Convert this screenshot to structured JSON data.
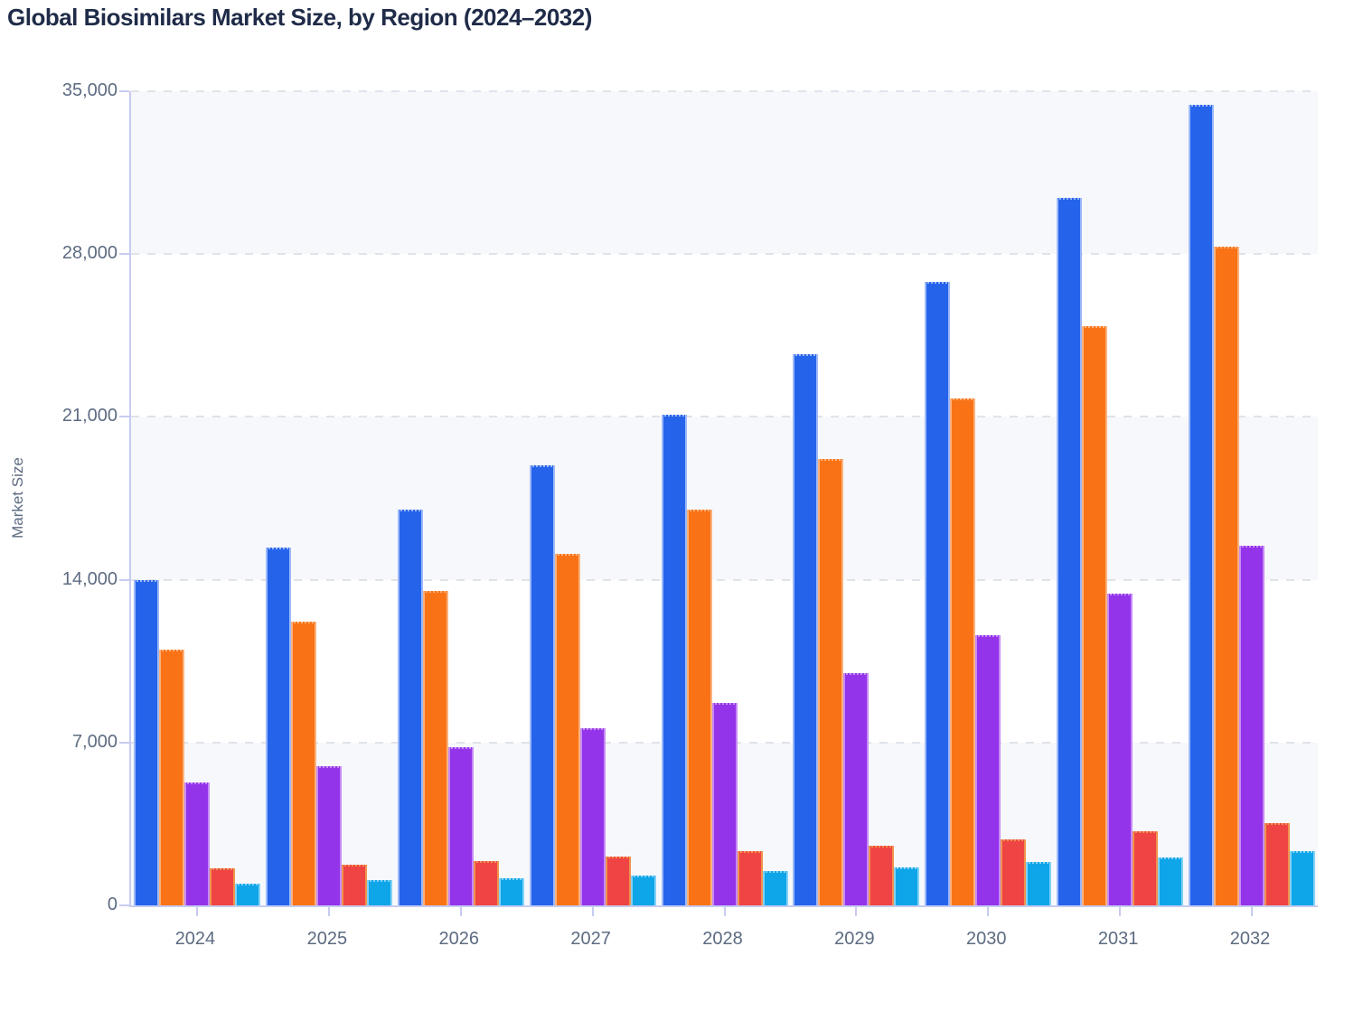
{
  "page": {
    "title": "Global Biosimilars Market Size, by Region (2024–2032)"
  },
  "chart_data": {
    "type": "bar",
    "title": "Global Biosimilars Market Size, by Region (2024–2032)",
    "xlabel": "",
    "ylabel": "Market Size",
    "categories": [
      "2024",
      "2025",
      "2026",
      "2027",
      "2028",
      "2029",
      "2030",
      "2031",
      "2032"
    ],
    "series": [
      {
        "name": "blue",
        "color": "#2563eb",
        "border_tint": "#9db9f8",
        "values": [
          14000,
          15400,
          17000,
          18900,
          21100,
          23700,
          26800,
          30400,
          34400
        ]
      },
      {
        "name": "orange",
        "color": "#f97316",
        "border_tint": "#fbb27d",
        "values": [
          11000,
          12200,
          13500,
          15100,
          17000,
          19200,
          21800,
          24900,
          28300
        ]
      },
      {
        "name": "purple",
        "color": "#9333ea",
        "border_tint": "#c68bf5",
        "values": [
          5300,
          6000,
          6800,
          7600,
          8700,
          10000,
          11600,
          13400,
          15450
        ]
      },
      {
        "name": "red",
        "color": "#ef4444",
        "border_tint": "#f0934e",
        "values": [
          1600,
          1740,
          1920,
          2090,
          2320,
          2580,
          2850,
          3180,
          3550
        ]
      },
      {
        "name": "cyan",
        "color": "#0ea5e9",
        "border_tint": "#82d2f6",
        "values": [
          950,
          1080,
          1180,
          1300,
          1490,
          1650,
          1870,
          2070,
          2330
        ]
      }
    ],
    "ylim": [
      0,
      35000
    ],
    "yticks": [
      0,
      7000,
      14000,
      21000,
      28000,
      35000
    ],
    "ytick_labels": [
      "0",
      "7,000",
      "14,000",
      "21,000",
      "28,000",
      "35,000"
    ],
    "grid": true,
    "legend_position": "none",
    "band_colors": [
      "#f7f8fb",
      "#ffffff"
    ],
    "style_colors": {
      "axis_line": "#c7ccf0",
      "grid_line": "#e0e3e9",
      "tick_text": "#5d6b82",
      "title_text": "#1f2b48"
    }
  }
}
